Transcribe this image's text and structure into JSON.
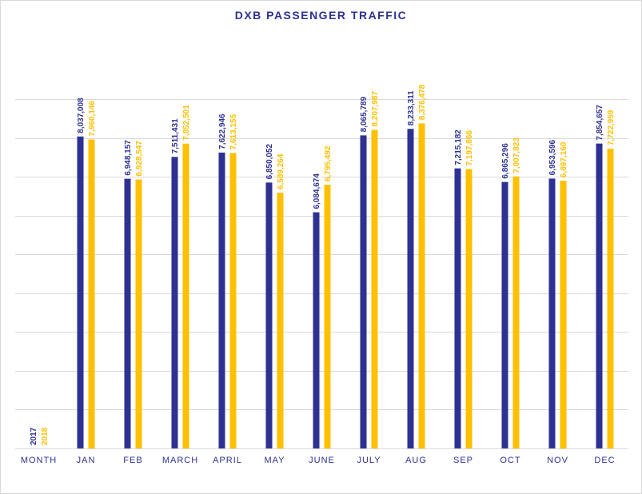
{
  "chart_data": {
    "type": "bar",
    "title": "DXB PASSENGER TRAFFIC",
    "xlabel": "",
    "ylabel": "",
    "categories": [
      "MONTH",
      "JAN",
      "FEB",
      "MARCH",
      "APRIL",
      "MAY",
      "JUNE",
      "JULY",
      "AUG",
      "SEP",
      "OCT",
      "NOV",
      "DEC"
    ],
    "series": [
      {
        "name": "2017",
        "color": "#2e3192",
        "values": [
          null,
          8037008,
          6948157,
          7511431,
          7622946,
          6850052,
          6084674,
          8065789,
          8233311,
          7215182,
          6865296,
          6953596,
          7854657
        ],
        "labels": [
          "2017",
          "8,037,008",
          "6,948,157",
          "7,511,431",
          "7,622,946",
          "6,850,052",
          "6,084,674",
          "8,065,789",
          "8,233,311",
          "7,215,182",
          "6,865,296",
          "6,953,596",
          "7,854,657"
        ]
      },
      {
        "name": "2018",
        "color": "#ffc000",
        "values": [
          null,
          7960146,
          6928547,
          7852501,
          7613155,
          6589264,
          6795492,
          8207987,
          8376478,
          7197866,
          7007823,
          6897160,
          7722959
        ],
        "labels": [
          "2018",
          "7,960,146",
          "6,928,547",
          "7,852,501",
          "7,613,155",
          "6,589,264",
          "6,795,492",
          "8,207,987",
          "8,376,478",
          "7,197,866",
          "7,007,823",
          "6,897,160",
          "7,722,959"
        ]
      }
    ],
    "ylim": [
      0,
      9000000
    ],
    "grid": true,
    "legend": "none",
    "colors": {
      "series_2017": "#2e3192",
      "series_2018": "#ffc000",
      "grid": "#d9d9d9",
      "axis_text": "#2e3192"
    }
  }
}
